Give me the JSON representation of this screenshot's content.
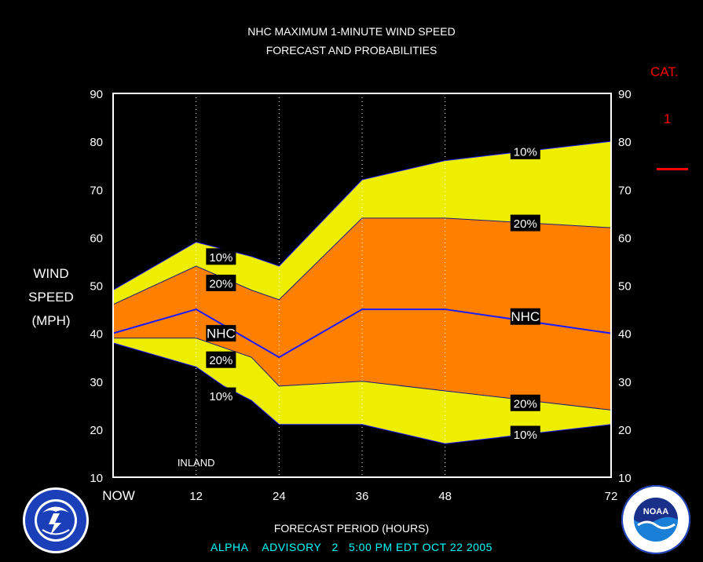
{
  "header": {
    "title_line1": "NHC MAXIMUM 1-MINUTE WIND SPEED",
    "title_line2": "FORECAST AND PROBABILITIES"
  },
  "category": {
    "label": "CAT.",
    "value": "1",
    "line_color": "#ff0000"
  },
  "axis": {
    "ylabel_lines": [
      "WIND",
      "SPEED",
      "(MPH)"
    ],
    "xlabel": "FORECAST PERIOD (HOURS)"
  },
  "advisory": {
    "storm": "ALPHA",
    "label": "ADVISORY",
    "number": "2",
    "time": "5:00 PM EDT OCT 22 2005"
  },
  "logos": {
    "left": "noaa-nws-seal",
    "right": "noaa-seal",
    "right_text": "NOAA"
  },
  "chart_data": {
    "type": "area",
    "title": "NHC MAXIMUM 1-MINUTE WIND SPEED FORECAST AND PROBABILITIES",
    "xlabel": "FORECAST PERIOD (HOURS)",
    "ylabel": "WIND SPEED (MPH)",
    "ylim": [
      10,
      90
    ],
    "xlim": [
      0,
      72
    ],
    "x_ticks": [
      {
        "x": 0,
        "label": "NOW"
      },
      {
        "x": 12,
        "label": "12"
      },
      {
        "x": 24,
        "label": "24"
      },
      {
        "x": 36,
        "label": "36"
      },
      {
        "x": 48,
        "label": "48"
      },
      {
        "x": 72,
        "label": "72"
      }
    ],
    "y_ticks": [
      10,
      20,
      30,
      40,
      50,
      60,
      70,
      80,
      90
    ],
    "vertical_grid_hours": [
      12,
      24,
      36,
      48
    ],
    "annotation": {
      "text": "INLAND",
      "x": 12
    },
    "colors": {
      "background": "#000000",
      "plot_bg": "#ffffff",
      "outer_band": "#eeee00",
      "inner_band": "#ff8000",
      "nhc_line": "#1a1aff",
      "text": "#ffffff"
    },
    "series": [
      {
        "name": "10%",
        "role": "upper",
        "x": [
          0,
          12,
          20,
          24,
          36,
          48,
          60,
          72
        ],
        "values": [
          49,
          59,
          56,
          54,
          72,
          76,
          78,
          80
        ]
      },
      {
        "name": "20%",
        "role": "upper",
        "x": [
          0,
          12,
          20,
          24,
          36,
          48,
          60,
          72
        ],
        "values": [
          46,
          54,
          49,
          47,
          64,
          64,
          63,
          62
        ]
      },
      {
        "name": "NHC",
        "role": "forecast",
        "x": [
          0,
          12,
          24,
          36,
          48,
          72
        ],
        "values": [
          40,
          45,
          35,
          45,
          45,
          40
        ]
      },
      {
        "name": "20%",
        "role": "lower",
        "x": [
          0,
          12,
          20,
          24,
          36,
          48,
          72
        ],
        "values": [
          39,
          39,
          35,
          29,
          30,
          28,
          24
        ]
      },
      {
        "name": "10%",
        "role": "lower",
        "x": [
          0,
          12,
          16,
          20,
          24,
          36,
          48,
          72
        ],
        "values": [
          38,
          33,
          29,
          26,
          21,
          21,
          17,
          21
        ]
      }
    ],
    "labels": [
      {
        "text": "10%",
        "x": 15.6,
        "y": 56
      },
      {
        "text": "20%",
        "x": 15.6,
        "y": 50.5
      },
      {
        "text": "NHC",
        "x": 15.6,
        "y": 40
      },
      {
        "text": "20%",
        "x": 15.6,
        "y": 34.5
      },
      {
        "text": "10%",
        "x": 15.6,
        "y": 27
      },
      {
        "text": "10%",
        "x": 59.6,
        "y": 78
      },
      {
        "text": "20%",
        "x": 59.6,
        "y": 63
      },
      {
        "text": "NHC",
        "x": 59.6,
        "y": 43.5
      },
      {
        "text": "20%",
        "x": 59.6,
        "y": 25.5
      },
      {
        "text": "10%",
        "x": 59.6,
        "y": 19
      }
    ]
  }
}
